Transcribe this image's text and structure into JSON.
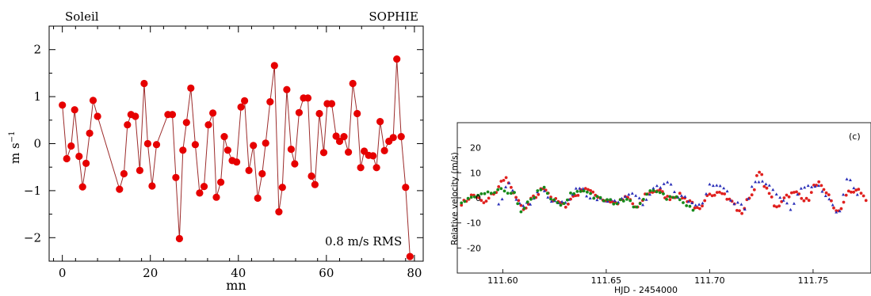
{
  "chart_data": [
    {
      "type": "line",
      "corner_labels": {
        "left": "Soleil",
        "right": "SOPHIE"
      },
      "xlabel": "mn",
      "ylabel": "m s",
      "ylabel_exp": "−1",
      "annotation": "0.8 m/s RMS",
      "xlim": [
        -3,
        82
      ],
      "ylim": [
        -2.5,
        2.5
      ],
      "x_ticks": [
        0,
        20,
        40,
        60,
        80
      ],
      "x_tick_labels": [
        "0",
        "20",
        "40",
        "60",
        "80"
      ],
      "y_ticks": [
        -2,
        -1,
        0,
        1,
        2
      ],
      "y_tick_labels": [
        "−2",
        "−1",
        "0",
        "1",
        "2"
      ],
      "grid": false,
      "color": "#e60000",
      "line_color": "#9c2b2b",
      "points": [
        [
          0.0,
          0.82
        ],
        [
          1.0,
          -0.32
        ],
        [
          2.0,
          -0.05
        ],
        [
          2.8,
          0.72
        ],
        [
          3.8,
          -0.27
        ],
        [
          4.6,
          -0.92
        ],
        [
          5.4,
          -0.42
        ],
        [
          6.2,
          0.22
        ],
        [
          7.0,
          0.92
        ],
        [
          8.0,
          0.58
        ],
        [
          13.0,
          -0.97
        ],
        [
          14.0,
          -0.64
        ],
        [
          14.8,
          0.4
        ],
        [
          15.6,
          0.62
        ],
        [
          16.6,
          0.58
        ],
        [
          17.6,
          -0.57
        ],
        [
          18.6,
          1.28
        ],
        [
          19.4,
          0.0
        ],
        [
          20.4,
          -0.9
        ],
        [
          21.4,
          -0.02
        ],
        [
          24.0,
          0.62
        ],
        [
          25.0,
          0.62
        ],
        [
          25.8,
          -0.72
        ],
        [
          26.6,
          -2.02
        ],
        [
          27.4,
          -0.14
        ],
        [
          28.2,
          0.45
        ],
        [
          29.2,
          1.18
        ],
        [
          30.2,
          -0.02
        ],
        [
          31.2,
          -1.05
        ],
        [
          32.2,
          -0.91
        ],
        [
          33.2,
          0.4
        ],
        [
          34.2,
          0.65
        ],
        [
          35.0,
          -1.14
        ],
        [
          36.0,
          -0.82
        ],
        [
          36.8,
          0.15
        ],
        [
          37.6,
          -0.14
        ],
        [
          38.6,
          -0.36
        ],
        [
          39.6,
          -0.39
        ],
        [
          40.6,
          0.78
        ],
        [
          41.4,
          0.91
        ],
        [
          42.4,
          -0.57
        ],
        [
          43.4,
          -0.04
        ],
        [
          44.4,
          -1.16
        ],
        [
          45.4,
          -0.64
        ],
        [
          46.2,
          0.01
        ],
        [
          47.2,
          0.89
        ],
        [
          48.2,
          1.66
        ],
        [
          49.2,
          -1.45
        ],
        [
          50.0,
          -0.93
        ],
        [
          51.0,
          1.15
        ],
        [
          52.0,
          -0.12
        ],
        [
          52.8,
          -0.43
        ],
        [
          53.8,
          0.66
        ],
        [
          54.8,
          0.97
        ],
        [
          55.8,
          0.97
        ],
        [
          56.6,
          -0.69
        ],
        [
          57.4,
          -0.87
        ],
        [
          58.4,
          0.64
        ],
        [
          59.4,
          -0.19
        ],
        [
          60.2,
          0.85
        ],
        [
          61.2,
          0.85
        ],
        [
          62.2,
          0.16
        ],
        [
          63.0,
          0.05
        ],
        [
          64.0,
          0.15
        ],
        [
          65.0,
          -0.18
        ],
        [
          66.0,
          1.28
        ],
        [
          67.0,
          0.64
        ],
        [
          67.8,
          -0.51
        ],
        [
          68.6,
          -0.16
        ],
        [
          69.6,
          -0.25
        ],
        [
          70.6,
          -0.26
        ],
        [
          71.4,
          -0.51
        ],
        [
          72.2,
          0.47
        ],
        [
          73.2,
          -0.15
        ],
        [
          74.2,
          0.05
        ],
        [
          75.2,
          0.13
        ],
        [
          76.0,
          1.8
        ],
        [
          77.0,
          0.15
        ],
        [
          78.0,
          -0.93
        ],
        [
          79.0,
          -2.4
        ]
      ]
    },
    {
      "type": "scatter",
      "panel_label": "(c)",
      "xlabel": "HJD - 2454000",
      "ylabel": "Relative velocity (m/s)",
      "xlim": [
        111.578,
        111.778
      ],
      "ylim": [
        -30,
        30
      ],
      "x_ticks": [
        111.6,
        111.65,
        111.7,
        111.75
      ],
      "x_tick_labels": [
        "111.60",
        "111.65",
        "111.70",
        "111.75"
      ],
      "y_ticks": [
        20,
        10,
        0,
        -10,
        -20
      ],
      "y_tick_labels": [
        "20",
        "10",
        "0",
        "-10",
        "-20"
      ],
      "grid": false,
      "series": [
        {
          "color": "#e0211f",
          "x_range": [
            111.58,
            111.776
          ],
          "step": 0.0012,
          "profile": [
            [
              111.58,
              -2
            ],
            [
              111.586,
              1
            ],
            [
              111.591,
              -2
            ],
            [
              111.596,
              2
            ],
            [
              111.601,
              8
            ],
            [
              111.606,
              1
            ],
            [
              111.61,
              -5
            ],
            [
              111.615,
              0
            ],
            [
              111.62,
              4
            ],
            [
              111.625,
              -1
            ],
            [
              111.63,
              -3
            ],
            [
              111.635,
              1
            ],
            [
              111.64,
              4
            ],
            [
              111.645,
              1
            ],
            [
              111.65,
              -1
            ],
            [
              111.655,
              -2
            ],
            [
              111.66,
              0
            ],
            [
              111.665,
              -4
            ],
            [
              111.67,
              2
            ],
            [
              111.675,
              3
            ],
            [
              111.68,
              0
            ],
            [
              111.685,
              1
            ],
            [
              111.69,
              -1
            ],
            [
              111.695,
              -5
            ],
            [
              111.7,
              1
            ],
            [
              111.705,
              3
            ],
            [
              111.71,
              -1
            ],
            [
              111.715,
              -6
            ],
            [
              111.72,
              1
            ],
            [
              111.724,
              10
            ],
            [
              111.728,
              3
            ],
            [
              111.732,
              -4
            ],
            [
              111.737,
              1
            ],
            [
              111.742,
              2
            ],
            [
              111.747,
              -1
            ],
            [
              111.752,
              6
            ],
            [
              111.757,
              1
            ],
            [
              111.762,
              -6
            ],
            [
              111.767,
              2
            ],
            [
              111.772,
              3
            ],
            [
              111.776,
              -1
            ]
          ],
          "noise": 0.9
        },
        {
          "color": "#2a2fb8",
          "x_range": [
            111.598,
            111.772
          ],
          "step": 0.0017,
          "profile": [
            [
              111.598,
              -2
            ],
            [
              111.603,
              5
            ],
            [
              111.608,
              -3
            ],
            [
              111.613,
              -2
            ],
            [
              111.618,
              3
            ],
            [
              111.624,
              -1
            ],
            [
              111.63,
              -2
            ],
            [
              111.637,
              4
            ],
            [
              111.643,
              0
            ],
            [
              111.65,
              -1
            ],
            [
              111.656,
              -1
            ],
            [
              111.663,
              1
            ],
            [
              111.668,
              -2
            ],
            [
              111.674,
              4
            ],
            [
              111.68,
              7
            ],
            [
              111.685,
              1
            ],
            [
              111.69,
              -1
            ],
            [
              111.695,
              -3
            ],
            [
              111.701,
              5
            ],
            [
              111.707,
              4
            ],
            [
              111.712,
              -2
            ],
            [
              111.717,
              -4
            ],
            [
              111.722,
              7
            ],
            [
              111.728,
              6
            ],
            [
              111.734,
              0
            ],
            [
              111.739,
              -4
            ],
            [
              111.745,
              5
            ],
            [
              111.751,
              5
            ],
            [
              111.757,
              0
            ],
            [
              111.762,
              -7
            ],
            [
              111.767,
              8
            ],
            [
              111.772,
              1
            ]
          ],
          "noise": 0.9
        },
        {
          "color": "#168a1a",
          "x_range": [
            111.58,
            111.692
          ],
          "step": 0.0016,
          "profile": [
            [
              111.58,
              -2
            ],
            [
              111.585,
              0
            ],
            [
              111.59,
              1
            ],
            [
              111.595,
              2
            ],
            [
              111.6,
              3
            ],
            [
              111.605,
              2
            ],
            [
              111.609,
              -6
            ],
            [
              111.614,
              0
            ],
            [
              111.619,
              4
            ],
            [
              111.624,
              -1
            ],
            [
              111.629,
              -3
            ],
            [
              111.634,
              2
            ],
            [
              111.64,
              3
            ],
            [
              111.645,
              0
            ],
            [
              111.65,
              -1
            ],
            [
              111.655,
              -2
            ],
            [
              111.66,
              0
            ],
            [
              111.665,
              -4
            ],
            [
              111.67,
              2
            ],
            [
              111.675,
              3
            ],
            [
              111.68,
              0
            ],
            [
              111.685,
              0
            ],
            [
              111.69,
              -4
            ],
            [
              111.692,
              -5
            ]
          ],
          "noise": 0.8
        }
      ]
    }
  ]
}
